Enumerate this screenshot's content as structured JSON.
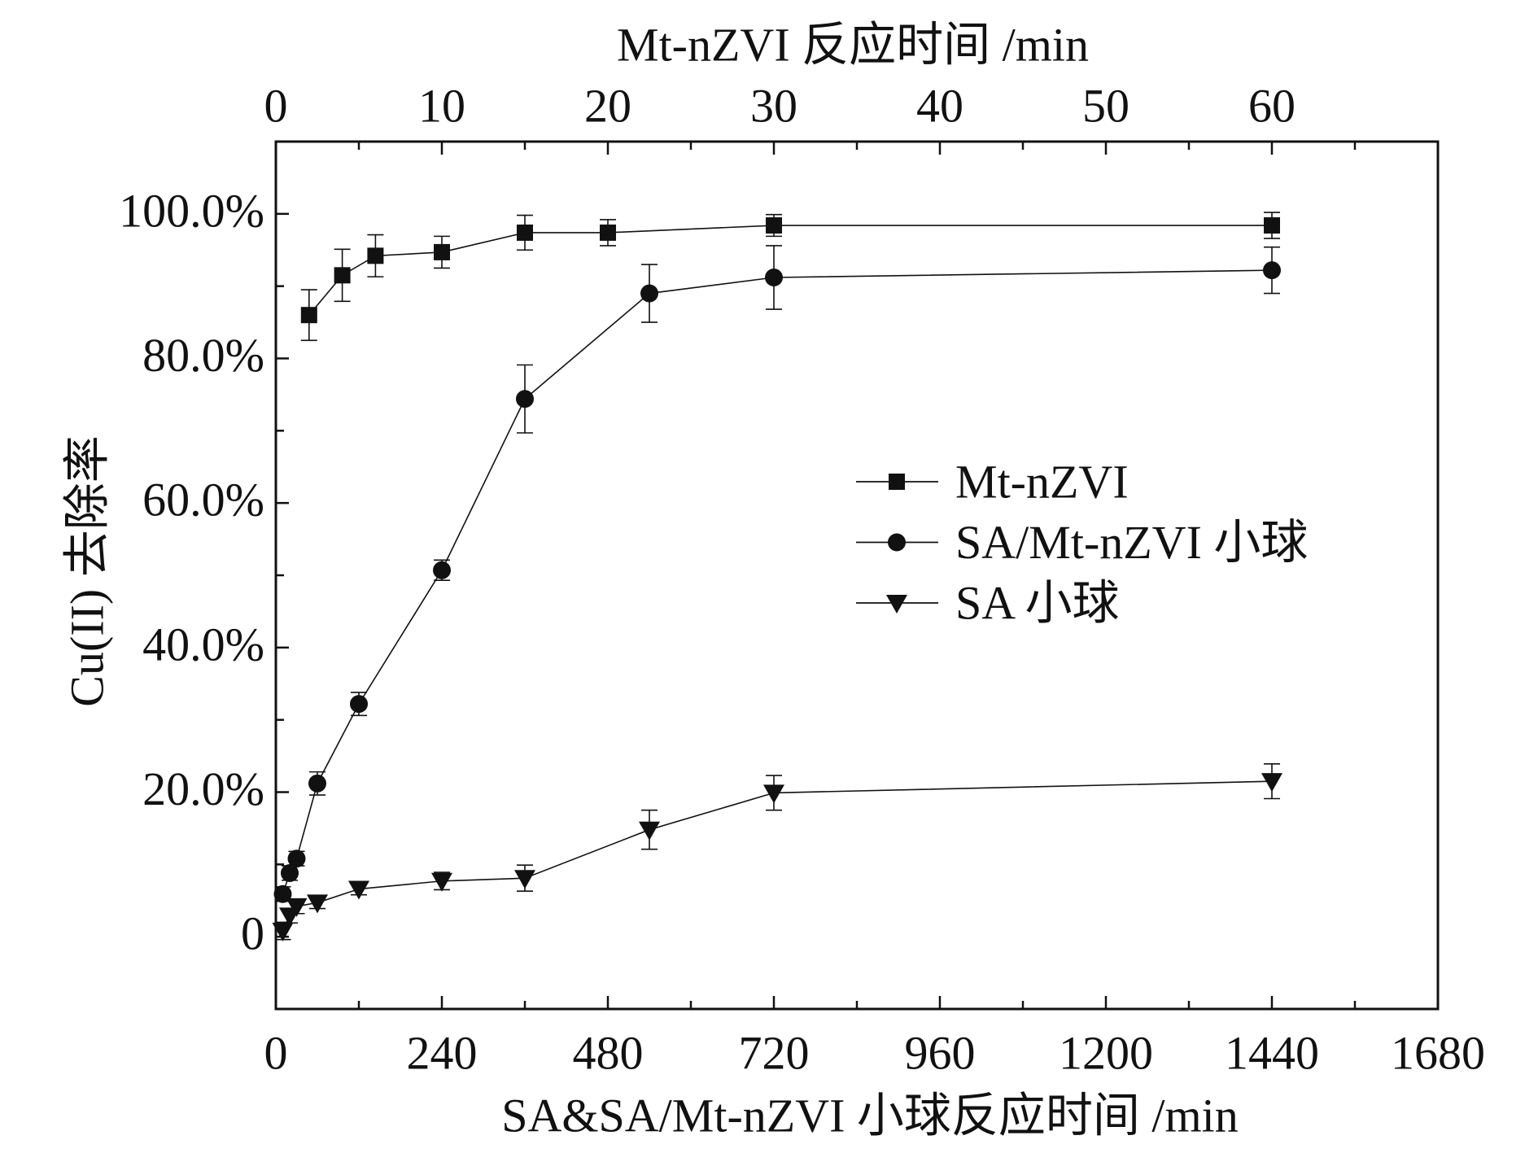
{
  "chart_data": {
    "type": "line",
    "xlabel": "SA&SA/Mt-nZVI 小球反应时间 /min",
    "x_top_label": "Mt-nZVI 反应时间 /min",
    "ylabel": "Cu(II) 去除率",
    "xlim": [
      0,
      1680
    ],
    "x_top_lim": [
      0,
      70
    ],
    "ylim": [
      -10,
      110
    ],
    "x_ticks": [
      0,
      240,
      480,
      720,
      960,
      1200,
      1440,
      1680
    ],
    "x_tick_labels": [
      "0",
      "240",
      "480",
      "720",
      "960",
      "1200",
      "1440",
      "1680"
    ],
    "x_top_ticks": [
      0,
      10,
      20,
      30,
      40,
      50,
      60
    ],
    "x_top_tick_labels": [
      "0",
      "10",
      "20",
      "30",
      "40",
      "50",
      "60"
    ],
    "y_ticks": [
      100,
      80,
      60,
      40,
      20,
      0
    ],
    "y_tick_labels": [
      "100.0%",
      "80.0%",
      "60.0%",
      "40.0%",
      "20.0%",
      "0"
    ],
    "grid": false,
    "legend_position": "right",
    "colors": {
      "foreground": "#111111",
      "background": "#ffffff"
    },
    "series": [
      {
        "name": "Mt-nZVI",
        "axis": "top",
        "marker": "square",
        "x": [
          2,
          4,
          6,
          10,
          15,
          20,
          30,
          60
        ],
        "y": [
          86.0,
          91.5,
          94.2,
          94.7,
          97.4,
          97.4,
          98.4,
          98.4
        ],
        "error": [
          3.5,
          3.6,
          2.9,
          2.2,
          2.4,
          1.8,
          1.5,
          1.8
        ]
      },
      {
        "name": "SA/Mt-nZVI 小球",
        "axis": "bottom",
        "marker": "circle",
        "x": [
          10,
          20,
          30,
          60,
          120,
          240,
          360,
          540,
          720,
          1440
        ],
        "y": [
          5.9,
          8.8,
          10.8,
          21.2,
          32.2,
          50.7,
          74.4,
          89.0,
          91.2,
          92.2
        ],
        "error": [
          1.0,
          1.0,
          1.0,
          1.6,
          1.6,
          1.4,
          4.7,
          4.0,
          4.4,
          3.2
        ]
      },
      {
        "name": "SA 小球",
        "axis": "bottom",
        "marker": "triangle-down",
        "x": [
          10,
          20,
          30,
          60,
          120,
          240,
          360,
          540,
          720,
          1440
        ],
        "y": [
          0.8,
          2.9,
          4.2,
          4.7,
          6.6,
          7.7,
          8.1,
          14.8,
          19.9,
          21.5
        ],
        "error": [
          1.2,
          1.0,
          1.0,
          0.8,
          0.8,
          1.2,
          1.8,
          2.7,
          2.4,
          2.4
        ]
      }
    ]
  }
}
